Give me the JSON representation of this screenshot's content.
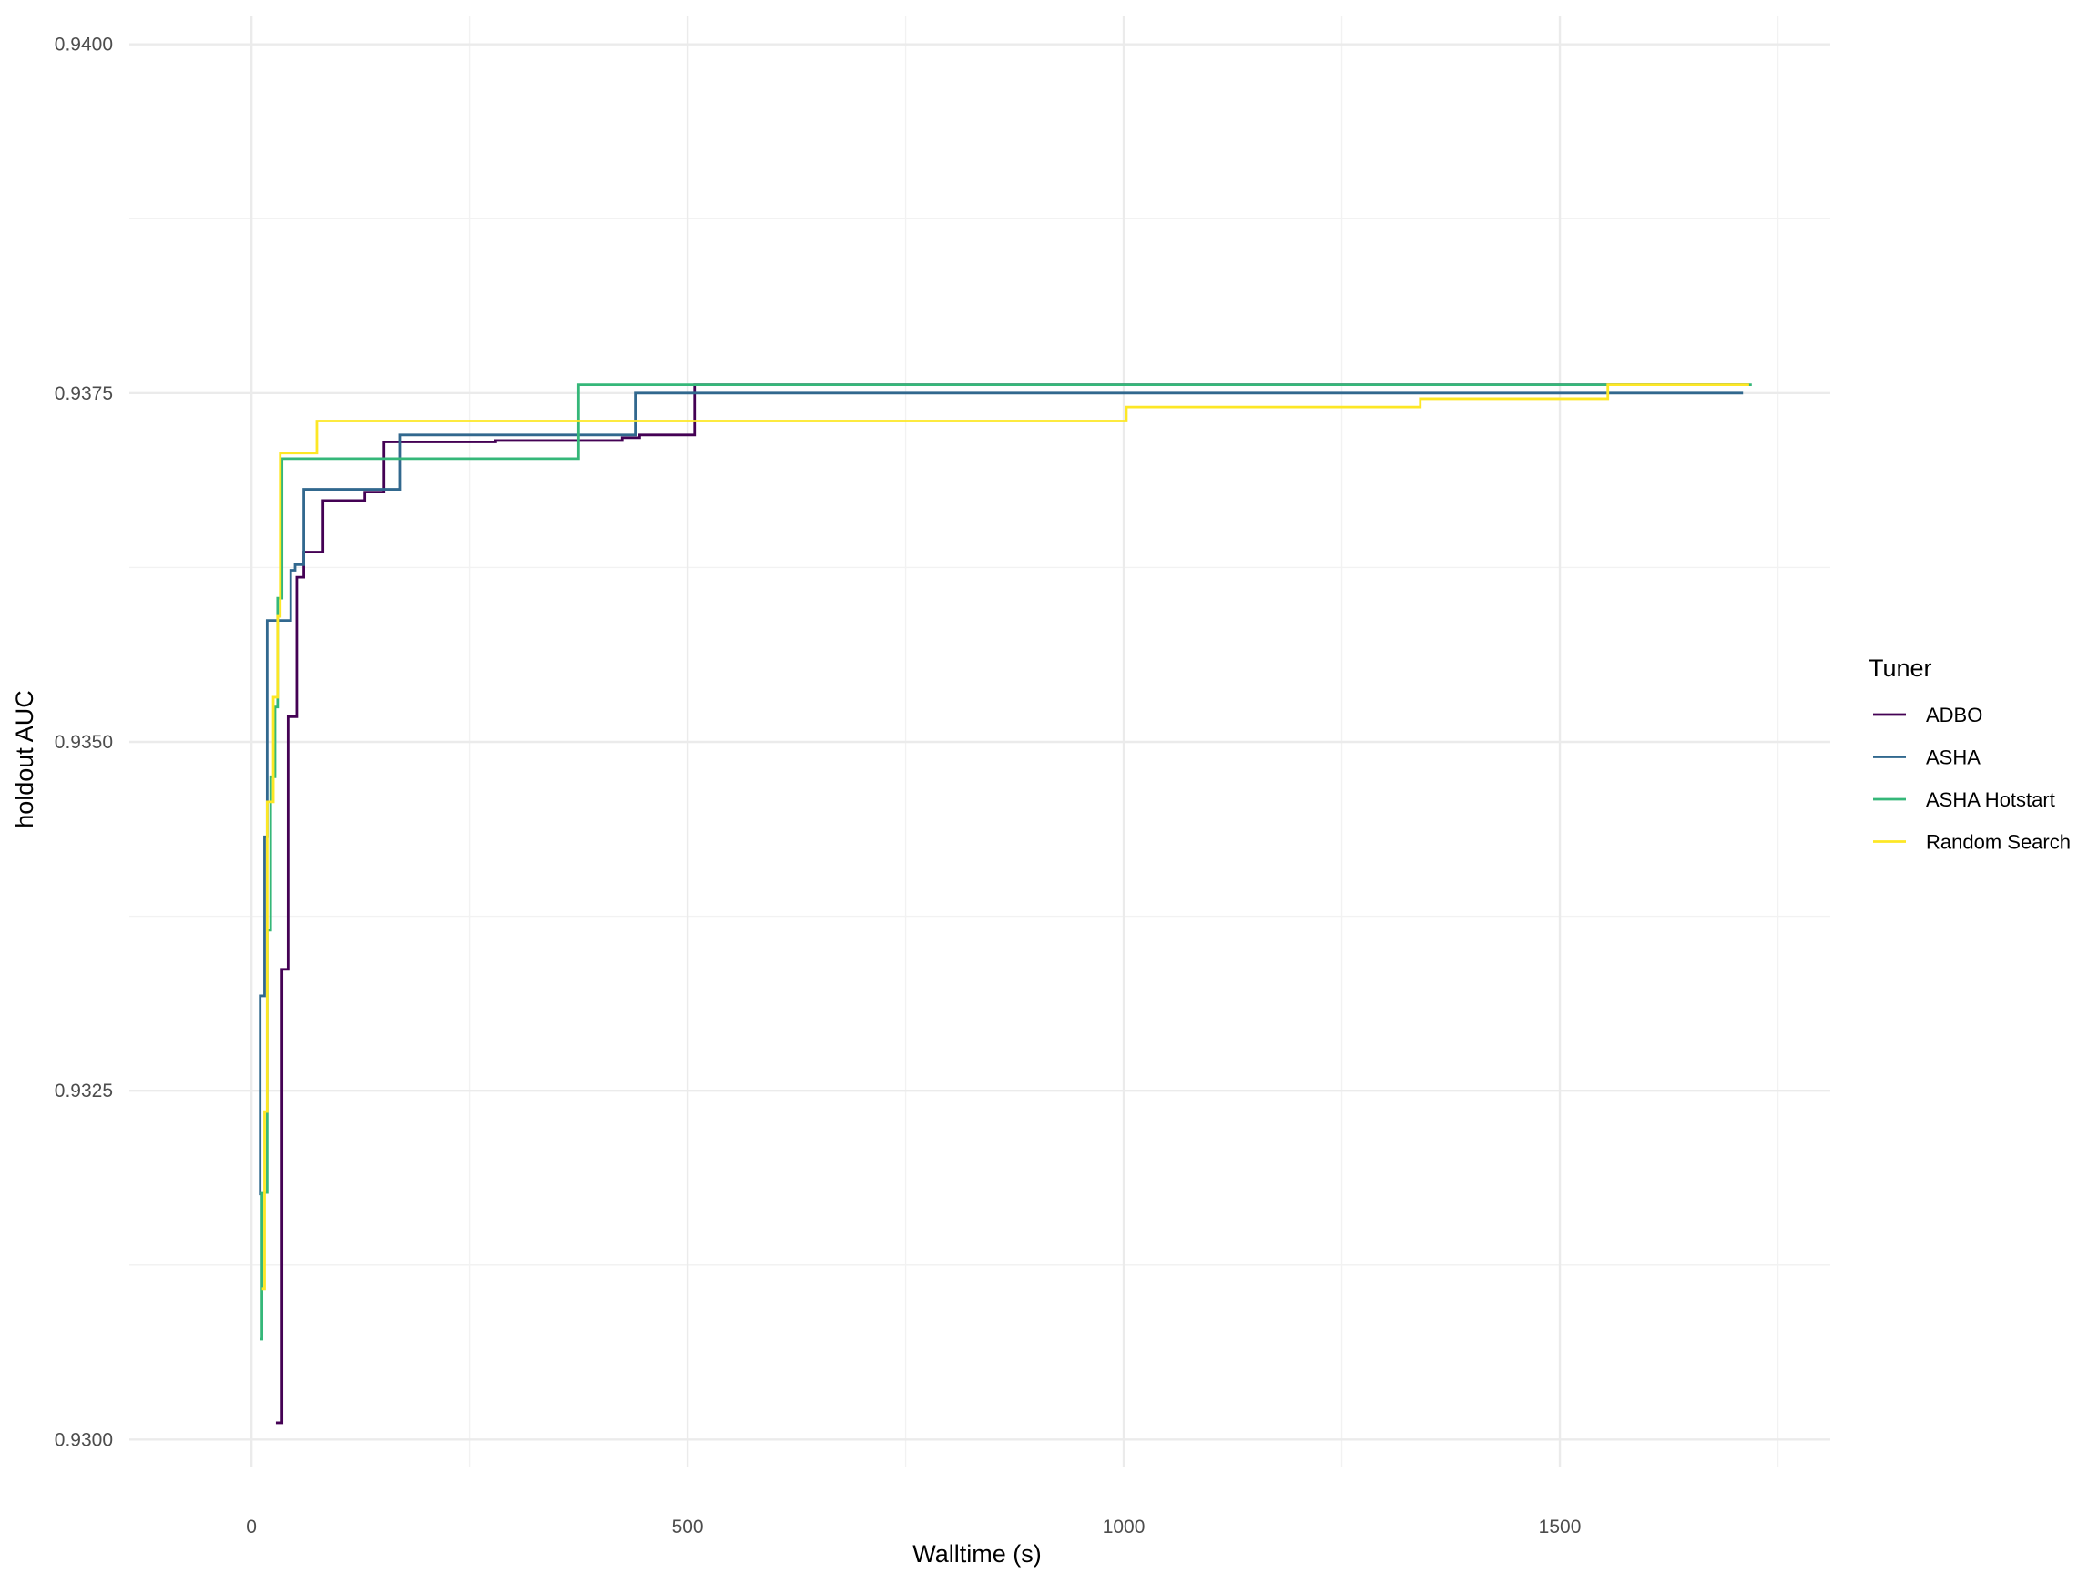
{
  "chart_data": {
    "type": "line",
    "step": true,
    "xlabel": "Walltime (s)",
    "ylabel": "holdout AUC",
    "xlim": [
      -140,
      1810
    ],
    "ylim": [
      0.9298,
      0.9402
    ],
    "x_ticks": [
      0,
      500,
      1000,
      1500
    ],
    "x_tick_labels": [
      "0",
      "500",
      "1000",
      "1500"
    ],
    "y_ticks": [
      0.93,
      0.9325,
      0.935,
      0.9375,
      0.94
    ],
    "y_tick_labels": [
      "0.9300",
      "0.9325",
      "0.9350",
      "0.9375",
      "0.9400"
    ],
    "grid": true,
    "legend": {
      "title": "Tuner",
      "position": "right"
    },
    "series": [
      {
        "name": "ADBO",
        "color": "#440154",
        "points": [
          [
            28,
            0.93012
          ],
          [
            35,
            0.93012
          ],
          [
            35,
            0.93337
          ],
          [
            42,
            0.93337
          ],
          [
            42,
            0.93518
          ],
          [
            52,
            0.93518
          ],
          [
            52,
            0.93618
          ],
          [
            60,
            0.93618
          ],
          [
            60,
            0.93636
          ],
          [
            82,
            0.93636
          ],
          [
            82,
            0.93673
          ],
          [
            130,
            0.93673
          ],
          [
            130,
            0.93679
          ],
          [
            152,
            0.93679
          ],
          [
            152,
            0.93715
          ],
          [
            280,
            0.93715
          ],
          [
            280,
            0.93716
          ],
          [
            425,
            0.93716
          ],
          [
            425,
            0.93718
          ],
          [
            445,
            0.93718
          ],
          [
            445,
            0.9372
          ],
          [
            508,
            0.9372
          ],
          [
            508,
            0.93756
          ],
          [
            1717,
            0.93756
          ]
        ]
      },
      {
        "name": "ASHA",
        "color": "#31688e",
        "points": [
          [
            10,
            0.93175
          ],
          [
            10,
            0.93318
          ],
          [
            15,
            0.93318
          ],
          [
            15,
            0.93432
          ],
          [
            18,
            0.93432
          ],
          [
            18,
            0.93587
          ],
          [
            45,
            0.93587
          ],
          [
            45,
            0.93623
          ],
          [
            50,
            0.93623
          ],
          [
            50,
            0.93627
          ],
          [
            60,
            0.93627
          ],
          [
            60,
            0.93681
          ],
          [
            170,
            0.93681
          ],
          [
            170,
            0.9372
          ],
          [
            440,
            0.9372
          ],
          [
            440,
            0.9375
          ],
          [
            1710,
            0.9375
          ]
        ]
      },
      {
        "name": "ASHA Hotstart",
        "color": "#35b779",
        "points": [
          [
            10,
            0.93072
          ],
          [
            12,
            0.93072
          ],
          [
            12,
            0.93177
          ],
          [
            18,
            0.93177
          ],
          [
            18,
            0.93365
          ],
          [
            22,
            0.93365
          ],
          [
            22,
            0.93475
          ],
          [
            27,
            0.93475
          ],
          [
            27,
            0.93525
          ],
          [
            30,
            0.93525
          ],
          [
            30,
            0.93603
          ],
          [
            35,
            0.93603
          ],
          [
            35,
            0.93703
          ],
          [
            375,
            0.93703
          ],
          [
            375,
            0.93756
          ],
          [
            1720,
            0.93756
          ]
        ]
      },
      {
        "name": "Random Search",
        "color": "#fde725",
        "points": [
          [
            12,
            0.93108
          ],
          [
            15,
            0.93108
          ],
          [
            15,
            0.93235
          ],
          [
            18,
            0.93235
          ],
          [
            18,
            0.93457
          ],
          [
            25,
            0.93457
          ],
          [
            25,
            0.93532
          ],
          [
            30,
            0.93532
          ],
          [
            30,
            0.9359
          ],
          [
            33,
            0.9359
          ],
          [
            33,
            0.93707
          ],
          [
            75,
            0.93707
          ],
          [
            75,
            0.9373
          ],
          [
            1003,
            0.9373
          ],
          [
            1003,
            0.9374
          ],
          [
            1340,
            0.9374
          ],
          [
            1340,
            0.93746
          ],
          [
            1555,
            0.93746
          ],
          [
            1555,
            0.93756
          ],
          [
            1717,
            0.93756
          ]
        ]
      }
    ]
  }
}
